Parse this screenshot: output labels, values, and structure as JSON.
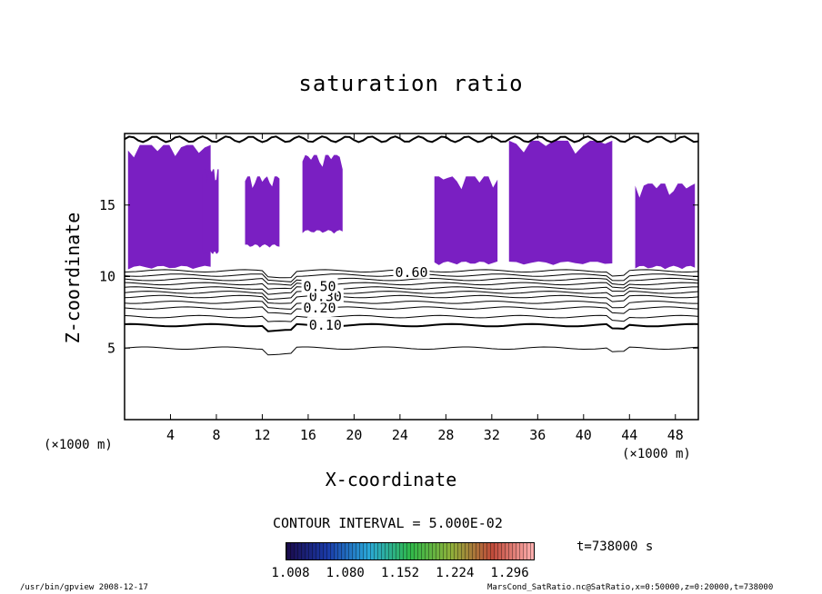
{
  "figure": {
    "title": "saturation ratio",
    "xlabel": "X-coordinate",
    "ylabel": "Z-coordinate",
    "x_unit_left": "(×1000 m)",
    "x_unit_right": "(×1000 m)",
    "contour_interval_text": "CONTOUR INTERVAL = 5.000E-02",
    "time_text": "t=738000 s",
    "footer_left": "/usr/bin/gpview  2008-12-17",
    "footer_right": "MarsCond_SatRatio.nc@SatRatio,x=0:50000,z=0:20000,t=738000",
    "fill_color": "#7a1fc2",
    "colorbar_ticks": [
      "1.008",
      "1.080",
      "1.152",
      "1.224",
      "1.296"
    ],
    "colorbar_stops": [
      "#1a0a4a",
      "#1a3aa8",
      "#2aa8d8",
      "#2fb84a",
      "#8fb03a",
      "#c04a3a",
      "#ffb0b0"
    ]
  },
  "chart_data": {
    "type": "contour",
    "title": "saturation ratio",
    "xlabel": "X-coordinate",
    "ylabel": "Z-coordinate",
    "xlim": [
      0,
      50
    ],
    "ylim": [
      0,
      20
    ],
    "x_ticks": [
      4,
      8,
      12,
      16,
      20,
      24,
      28,
      32,
      36,
      40,
      44,
      48
    ],
    "y_ticks": [
      5,
      10,
      15
    ],
    "contour_labels": [
      {
        "text": "0.10",
        "x": 17.5,
        "z": 6.6
      },
      {
        "text": "0.20",
        "x": 17.0,
        "z": 7.8
      },
      {
        "text": "0.30",
        "x": 17.5,
        "z": 8.6
      },
      {
        "text": "0.50",
        "x": 17.0,
        "z": 9.3
      },
      {
        "text": "0.60",
        "x": 25.0,
        "z": 10.3
      }
    ],
    "contour_levels_z": [
      5.0,
      6.6,
      7.2,
      7.8,
      8.2,
      8.6,
      8.9,
      9.2,
      9.5,
      9.8,
      10.1,
      10.4
    ],
    "supersaturated_regions": [
      {
        "x": [
          0.3,
          7.5
        ],
        "z": [
          10.5,
          19.2
        ]
      },
      {
        "x": [
          6.8,
          8.2
        ],
        "z": [
          11.5,
          17.5
        ]
      },
      {
        "x": [
          10.5,
          13.5
        ],
        "z": [
          12.0,
          17.0
        ]
      },
      {
        "x": [
          15.5,
          19.0
        ],
        "z": [
          13.0,
          18.5
        ]
      },
      {
        "x": [
          27.0,
          32.5
        ],
        "z": [
          10.8,
          17.0
        ]
      },
      {
        "x": [
          33.5,
          42.5
        ],
        "z": [
          10.8,
          19.5
        ]
      },
      {
        "x": [
          44.5,
          49.7
        ],
        "z": [
          10.5,
          16.5
        ]
      }
    ],
    "colorbar": {
      "min": 1.008,
      "max": 1.296,
      "ticks": [
        1.008,
        1.08,
        1.152,
        1.224,
        1.296
      ]
    }
  }
}
